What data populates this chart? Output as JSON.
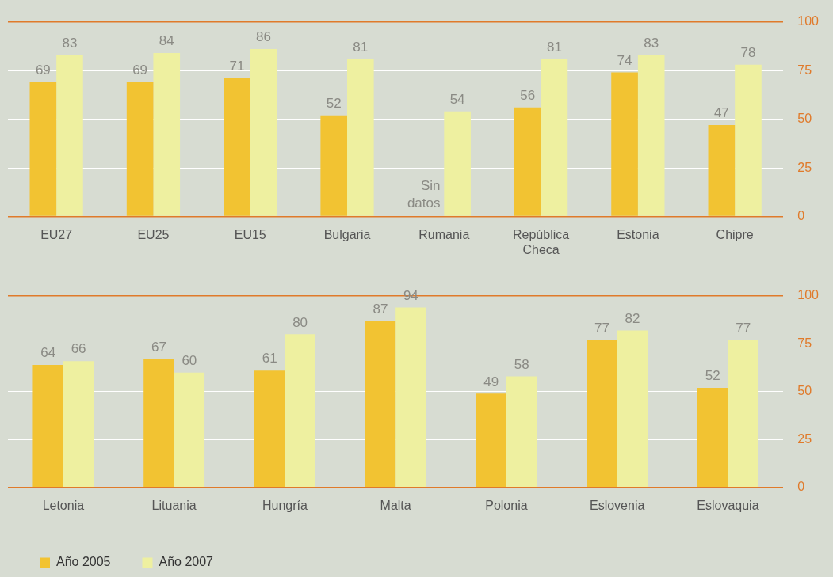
{
  "chart_data": [
    {
      "type": "bar",
      "categories": [
        "EU27",
        "EU25",
        "EU15",
        "Bulgaria",
        "Rumania",
        "República Checa",
        "Estonia",
        "Chipre"
      ],
      "series": [
        {
          "color": "#f2c332",
          "values": [
            69,
            69,
            71,
            52,
            null,
            56,
            74,
            47
          ]
        },
        {
          "color": "#eef0a0",
          "values": [
            83,
            84,
            86,
            81,
            54,
            81,
            83,
            78
          ]
        }
      ],
      "ylim": [
        0,
        100
      ],
      "yticks": [
        0,
        25,
        50,
        75,
        100
      ],
      "grid": "y",
      "legend": false,
      "data_labels": true,
      "annotations": [
        {
          "text": "Sin datos",
          "x": "Rumania",
          "y": 0
        }
      ]
    },
    {
      "type": "bar",
      "categories": [
        "Letonia",
        "Lituania",
        "Hungría",
        "Malta",
        "Polonia",
        "Eslovenia",
        "Eslovaquia"
      ],
      "series": [
        {
          "name": "Año 2005",
          "color": "#f2c332",
          "values": [
            64,
            67,
            61,
            87,
            49,
            77,
            52
          ]
        },
        {
          "name": "Año 2007",
          "color": "#eef0a0",
          "values": [
            66,
            60,
            80,
            94,
            58,
            82,
            77
          ]
        }
      ],
      "ylim": [
        0,
        100
      ],
      "yticks": [
        0,
        25,
        50,
        75,
        100
      ],
      "grid": "y",
      "legend": "bottom left",
      "data_labels": true
    }
  ]
}
